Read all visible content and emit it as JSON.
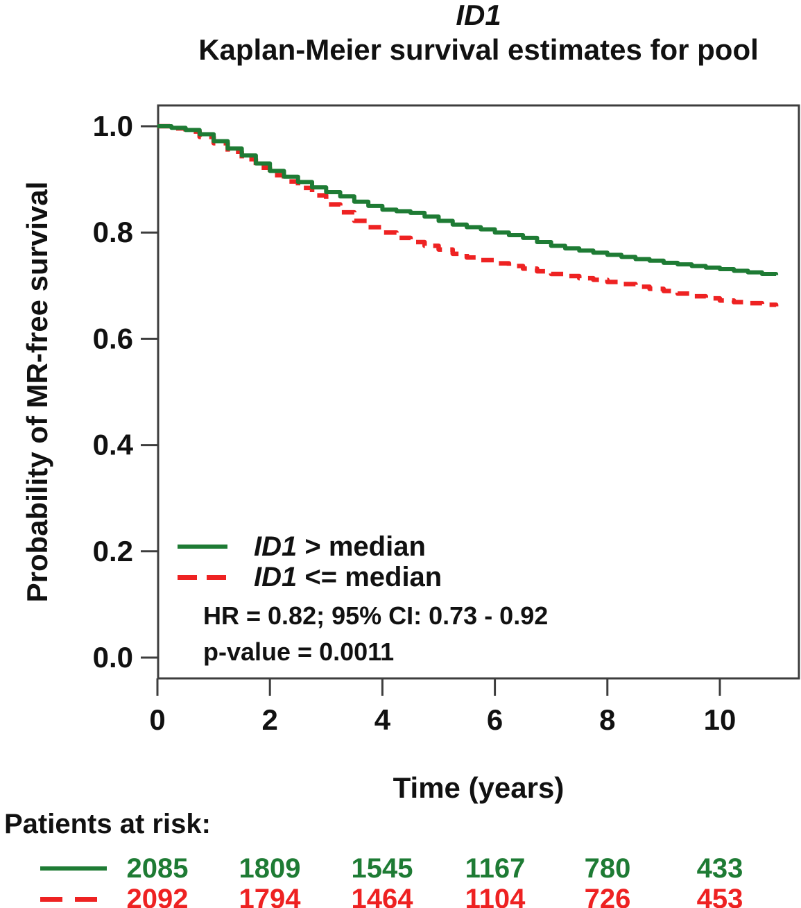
{
  "chart_data": {
    "type": "line",
    "curve_type": "step",
    "title": "ID1",
    "subtitle": "Kaplan-Meier survival estimates for pool",
    "xlabel": "Time (years)",
    "ylabel": "Probability of MR-free survival",
    "xlim": [
      0,
      11.4
    ],
    "ylim": [
      -0.04,
      1.04
    ],
    "x_ticks": [
      0,
      2,
      4,
      6,
      8,
      10
    ],
    "y_ticks": [
      1.0,
      0.8,
      0.6,
      0.4,
      0.2,
      0.0
    ],
    "y_tick_labels": [
      "1.0",
      "0.8",
      "0.6",
      "0.4",
      "0.2",
      "0.0"
    ],
    "grid": false,
    "legend_position": "inside lower-left",
    "series": [
      {
        "name": "ID1 <= median",
        "color": "#ee2222",
        "line_style": "dashed",
        "x": [
          0,
          0.25,
          0.5,
          0.75,
          1,
          1.25,
          1.5,
          1.75,
          2,
          2.25,
          2.5,
          2.75,
          3,
          3.25,
          3.5,
          3.75,
          4,
          4.25,
          4.5,
          4.75,
          5,
          5.25,
          5.5,
          5.75,
          6,
          6.25,
          6.5,
          6.75,
          7,
          7.25,
          7.5,
          7.75,
          8,
          8.25,
          8.5,
          8.75,
          9,
          9.25,
          9.5,
          9.75,
          10,
          10.25,
          10.5,
          10.75,
          11
        ],
        "y": [
          1.0,
          0.996,
          0.99,
          0.98,
          0.968,
          0.952,
          0.938,
          0.922,
          0.908,
          0.896,
          0.884,
          0.87,
          0.853,
          0.838,
          0.822,
          0.81,
          0.8,
          0.79,
          0.782,
          0.775,
          0.768,
          0.76,
          0.753,
          0.748,
          0.742,
          0.737,
          0.732,
          0.727,
          0.722,
          0.718,
          0.714,
          0.711,
          0.707,
          0.703,
          0.698,
          0.694,
          0.69,
          0.685,
          0.68,
          0.676,
          0.672,
          0.669,
          0.667,
          0.664,
          0.661
        ]
      },
      {
        "name": "ID1 > median",
        "color": "#1e7b34",
        "line_style": "solid",
        "x": [
          0,
          0.25,
          0.5,
          0.75,
          1,
          1.25,
          1.5,
          1.75,
          2,
          2.25,
          2.5,
          2.75,
          3,
          3.25,
          3.5,
          3.75,
          4,
          4.25,
          4.5,
          4.75,
          5,
          5.25,
          5.5,
          5.75,
          6,
          6.25,
          6.5,
          6.75,
          7,
          7.25,
          7.5,
          7.75,
          8,
          8.25,
          8.5,
          8.75,
          9,
          9.25,
          9.5,
          9.75,
          10,
          10.25,
          10.5,
          10.75,
          11
        ],
        "y": [
          1.0,
          0.997,
          0.993,
          0.985,
          0.972,
          0.958,
          0.945,
          0.93,
          0.916,
          0.905,
          0.895,
          0.885,
          0.876,
          0.868,
          0.858,
          0.85,
          0.843,
          0.84,
          0.837,
          0.83,
          0.822,
          0.815,
          0.81,
          0.806,
          0.8,
          0.795,
          0.79,
          0.782,
          0.775,
          0.77,
          0.766,
          0.762,
          0.758,
          0.754,
          0.75,
          0.747,
          0.743,
          0.74,
          0.737,
          0.734,
          0.731,
          0.728,
          0.725,
          0.722,
          0.72
        ]
      }
    ],
    "annotations": [
      "HR = 0.82; 95% CI: 0.73 - 0.92",
      "p-value = 0.0011"
    ]
  },
  "legend": {
    "items": [
      {
        "gene": "ID1",
        "comparison": " > median",
        "color": "#1e7b34",
        "line_style": "solid"
      },
      {
        "gene": "ID1",
        "comparison": " <= median",
        "color": "#ee2222",
        "line_style": "dashed"
      }
    ],
    "hr_text": "HR = 0.82; 95% CI: 0.73 - 0.92",
    "p_value_text": "p-value = 0.0011"
  },
  "risk_table": {
    "header": "Patients at risk:",
    "time_points": [
      0,
      2,
      4,
      6,
      8,
      10
    ],
    "rows": [
      {
        "name": "ID1 > median",
        "color": "#1e7b34",
        "counts": [
          "2085",
          "1809",
          "1545",
          "1167",
          "780",
          "433"
        ]
      },
      {
        "name": "ID1 <= median",
        "color": "#ee2222",
        "counts": [
          "2092",
          "1794",
          "1464",
          "1104",
          "726",
          "453"
        ]
      }
    ]
  },
  "colors": {
    "green": "#1e7b34",
    "red": "#ee2222",
    "axis": "#3d3d3d",
    "text": "#111111"
  }
}
